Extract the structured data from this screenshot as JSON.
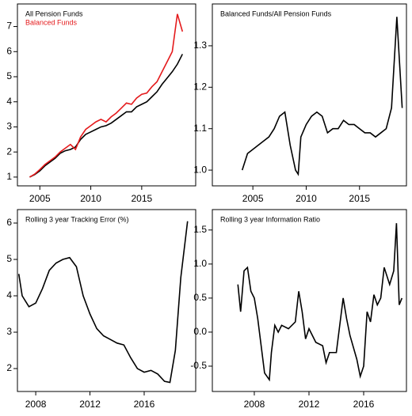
{
  "chart_data": [
    {
      "type": "line",
      "x": [
        2004,
        2004.5,
        2005,
        2005.5,
        2006,
        2006.5,
        2007,
        2007.5,
        2008,
        2008.5,
        2009,
        2009.5,
        2010,
        2010.5,
        2011,
        2011.5,
        2012,
        2012.5,
        2013,
        2013.5,
        2014,
        2014.5,
        2015,
        2015.5,
        2016,
        2016.5,
        2017,
        2017.5,
        2018,
        2018.5,
        2019
      ],
      "series": [
        {
          "name": "All Pension Funds",
          "color": "#000000",
          "values": [
            1.0,
            1.1,
            1.25,
            1.45,
            1.6,
            1.75,
            1.95,
            2.05,
            2.1,
            2.2,
            2.5,
            2.7,
            2.8,
            2.9,
            3.0,
            3.05,
            3.15,
            3.3,
            3.45,
            3.6,
            3.6,
            3.8,
            3.9,
            4.0,
            4.2,
            4.4,
            4.7,
            4.95,
            5.2,
            5.5,
            5.9
          ]
        },
        {
          "name": "Balanced Funds",
          "color": "#e41a1c",
          "values": [
            1.0,
            1.12,
            1.3,
            1.5,
            1.65,
            1.8,
            2.0,
            2.15,
            2.3,
            2.1,
            2.6,
            2.9,
            3.05,
            3.2,
            3.3,
            3.2,
            3.4,
            3.55,
            3.75,
            3.95,
            3.9,
            4.15,
            4.3,
            4.35,
            4.6,
            4.8,
            5.2,
            5.6,
            6.0,
            7.5,
            6.8
          ]
        }
      ],
      "xlim": [
        2002.8,
        2020.3
      ],
      "xticks": [
        2005,
        2010,
        2015
      ],
      "ylim": [
        0.65,
        7.9
      ],
      "yticks": [
        1,
        2,
        3,
        4,
        5,
        6,
        7
      ],
      "legend": "top-left"
    },
    {
      "type": "line",
      "title": "Balanced Funds/All Pension Funds",
      "x": [
        2004,
        2004.5,
        2005,
        2005.5,
        2006,
        2006.5,
        2007,
        2007.5,
        2008,
        2008.5,
        2009,
        2009.25,
        2009.5,
        2010,
        2010.5,
        2011,
        2011.5,
        2012,
        2012.5,
        2013,
        2013.5,
        2014,
        2014.5,
        2015,
        2015.5,
        2016,
        2016.5,
        2017,
        2017.5,
        2018,
        2018.5,
        2019
      ],
      "values": [
        1.0,
        1.04,
        1.05,
        1.06,
        1.07,
        1.08,
        1.1,
        1.13,
        1.14,
        1.06,
        1.0,
        0.99,
        1.08,
        1.11,
        1.13,
        1.14,
        1.13,
        1.09,
        1.1,
        1.1,
        1.12,
        1.11,
        1.11,
        1.1,
        1.09,
        1.09,
        1.08,
        1.09,
        1.1,
        1.15,
        1.37,
        1.15
      ],
      "color": "#000000",
      "xlim": [
        2001.2,
        2019.4
      ],
      "xticks": [
        2005,
        2010,
        2015
      ],
      "ylim": [
        0.962,
        1.401
      ],
      "yticks": [
        {
          "value": 1.0,
          "label": "1.0"
        },
        1.1,
        1.2,
        1.3
      ]
    },
    {
      "type": "line",
      "title": "Rolling 3 year Tracking Error (%)",
      "x": [
        2006.75,
        2007,
        2007.5,
        2008,
        2008.5,
        2009,
        2009.5,
        2010,
        2010.5,
        2011,
        2011.5,
        2012,
        2012.5,
        2013,
        2013.5,
        2014,
        2014.5,
        2015,
        2015.5,
        2016,
        2016.5,
        2017,
        2017.5,
        2017.9,
        2018.3,
        2018.7,
        2019.2
      ],
      "values": [
        4.6,
        4.0,
        3.7,
        3.8,
        4.2,
        4.7,
        4.9,
        5.0,
        5.05,
        4.8,
        4.0,
        3.5,
        3.1,
        2.9,
        2.8,
        2.7,
        2.65,
        2.3,
        2.0,
        1.9,
        1.95,
        1.85,
        1.65,
        1.62,
        2.5,
        4.5,
        6.05
      ],
      "color": "#000000",
      "xlim": [
        2006.65,
        2019.8
      ],
      "xticks": [
        2008,
        2012,
        2016
      ],
      "ylim": [
        1.37,
        6.37
      ],
      "yticks": [
        2,
        3,
        4,
        5,
        6
      ]
    },
    {
      "type": "line",
      "title": "Rolling 3 year Information Ratio",
      "x": [
        2006.8,
        2007,
        2007.25,
        2007.5,
        2007.75,
        2008,
        2008.25,
        2008.5,
        2008.75,
        2009.1,
        2009.25,
        2009.5,
        2009.75,
        2010,
        2010.5,
        2011,
        2011.25,
        2011.5,
        2011.75,
        2012,
        2012.5,
        2013,
        2013.25,
        2013.5,
        2014,
        2014.25,
        2014.5,
        2014.75,
        2015,
        2015.5,
        2015.75,
        2016,
        2016.25,
        2016.5,
        2016.75,
        2017,
        2017.25,
        2017.5,
        2017.9,
        2018.2,
        2018.4,
        2018.6,
        2018.8
      ],
      "values": [
        0.7,
        0.3,
        0.9,
        0.95,
        0.6,
        0.5,
        0.2,
        -0.2,
        -0.6,
        -0.7,
        -0.3,
        0.1,
        0.0,
        0.1,
        0.05,
        0.15,
        0.6,
        0.3,
        -0.1,
        0.05,
        -0.15,
        -0.2,
        -0.45,
        -0.3,
        -0.3,
        0.1,
        0.5,
        0.2,
        -0.05,
        -0.4,
        -0.65,
        -0.5,
        0.3,
        0.15,
        0.55,
        0.4,
        0.5,
        0.95,
        0.7,
        0.9,
        1.6,
        0.4,
        0.5
      ],
      "color": "#000000",
      "xlim": [
        2004.93,
        2019.13
      ],
      "xticks": [
        2008,
        2012,
        2016
      ],
      "ylim": [
        -0.872,
        1.8
      ],
      "yticks": [
        {
          "value": -0.5,
          "label": "-0.5"
        },
        {
          "value": 0,
          "label": "0.0"
        },
        0.5,
        {
          "value": 1,
          "label": "1.0"
        },
        1.5
      ]
    }
  ]
}
